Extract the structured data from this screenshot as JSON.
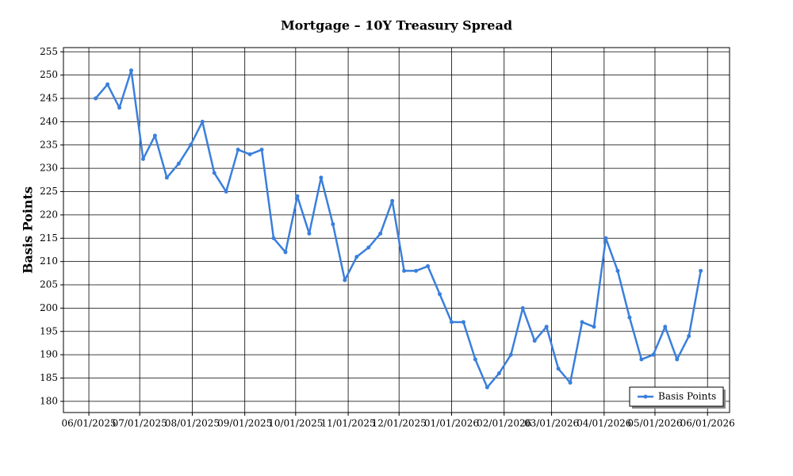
{
  "chart_data": {
    "type": "line",
    "title": "Mortgage – 10Y Treasury Spread",
    "y_label": "Basis Points",
    "x": [
      "2025-06-05",
      "2025-06-12",
      "2025-06-19",
      "2025-06-26",
      "2025-07-03",
      "2025-07-10",
      "2025-07-17",
      "2025-07-24",
      "2025-07-31",
      "2025-08-07",
      "2025-08-14",
      "2025-08-21",
      "2025-08-28",
      "2025-09-04",
      "2025-09-11",
      "2025-09-18",
      "2025-09-25",
      "2025-10-02",
      "2025-10-09",
      "2025-10-16",
      "2025-10-23",
      "2025-10-30",
      "2025-11-06",
      "2025-11-13",
      "2025-11-20",
      "2025-11-27",
      "2025-12-04",
      "2025-12-11",
      "2025-12-18",
      "2025-12-25",
      "2026-01-01",
      "2026-01-08",
      "2026-01-15",
      "2026-01-22",
      "2026-01-29",
      "2026-02-05",
      "2026-02-12",
      "2026-02-19",
      "2026-02-26",
      "2026-03-05",
      "2026-03-12",
      "2026-03-19",
      "2026-03-26",
      "2026-04-02",
      "2026-04-09",
      "2026-04-16",
      "2026-04-23",
      "2026-04-30",
      "2026-05-07",
      "2026-05-14",
      "2026-05-21",
      "2026-05-28"
    ],
    "series": [
      {
        "name": "Basis Points",
        "color": "#3a7fdc",
        "values": [
          245,
          248,
          243,
          251,
          232,
          237,
          228,
          231,
          235,
          240,
          229,
          225,
          234,
          233,
          234,
          215,
          212,
          224,
          216,
          228,
          218,
          206,
          211,
          213,
          216,
          223,
          208,
          208,
          209,
          203,
          197,
          197,
          189,
          183,
          186,
          190,
          200,
          193,
          196,
          187,
          184,
          197,
          196,
          215,
          208,
          198,
          189,
          190,
          196,
          189,
          194,
          208
        ]
      }
    ],
    "xlim": [
      "2025-05-17",
      "2026-06-14"
    ],
    "xticks": [
      {
        "value": "2025-06-01",
        "label": "06/01/2025"
      },
      {
        "value": "2025-07-01",
        "label": "07/01/2025"
      },
      {
        "value": "2025-08-01",
        "label": "08/01/2025"
      },
      {
        "value": "2025-09-01",
        "label": "09/01/2025"
      },
      {
        "value": "2025-10-01",
        "label": "10/01/2025"
      },
      {
        "value": "2025-11-01",
        "label": "11/01/2025"
      },
      {
        "value": "2025-12-01",
        "label": "12/01/2025"
      },
      {
        "value": "2026-01-01",
        "label": "01/01/2026"
      },
      {
        "value": "2026-02-01",
        "label": "02/01/2026"
      },
      {
        "value": "2026-03-01",
        "label": "03/01/2026"
      },
      {
        "value": "2026-04-01",
        "label": "04/01/2026"
      },
      {
        "value": "2026-05-01",
        "label": "05/01/2026"
      },
      {
        "value": "2026-06-01",
        "label": "06/01/2026"
      }
    ],
    "ylim": [
      177.6,
      255.9
    ],
    "yticks": [
      180,
      185,
      190,
      195,
      200,
      205,
      210,
      215,
      220,
      225,
      230,
      235,
      240,
      245,
      250,
      255
    ],
    "grid": true,
    "legend": "lower right"
  }
}
